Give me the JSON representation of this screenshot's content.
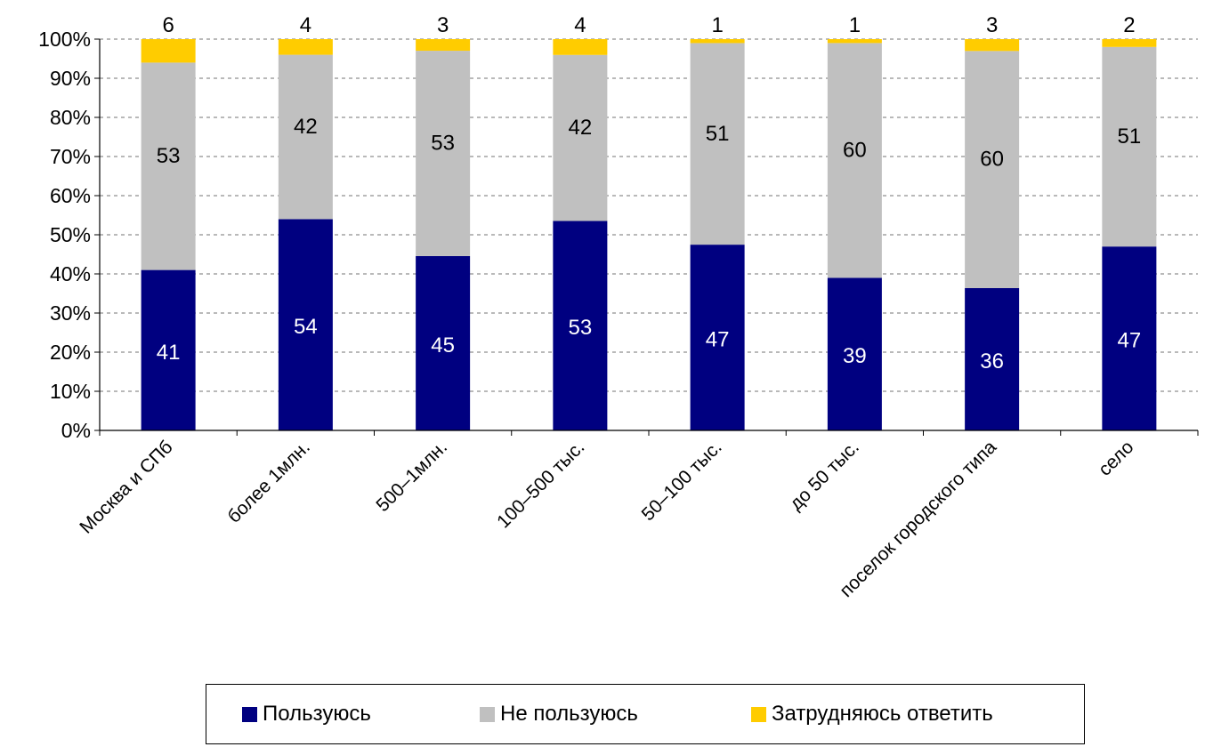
{
  "chart_data": {
    "type": "bar",
    "stacked": true,
    "percent_stacked": true,
    "categories": [
      "Москва и СПб",
      "более 1млн.",
      "500–1млн.",
      "100–500 тыс.",
      "50–100 тыс.",
      "до 50 тыс.",
      "поселок городского типа",
      "село"
    ],
    "series": [
      {
        "name": "Пользуюсь",
        "color": "#000080",
        "values": [
          41,
          54,
          45,
          53,
          47,
          39,
          36,
          47
        ]
      },
      {
        "name": "Не пользуюсь",
        "color": "#C0C0C0",
        "values": [
          53,
          42,
          53,
          42,
          51,
          60,
          60,
          51
        ]
      },
      {
        "name": "Затрудняюсь ответить",
        "color": "#FFCC00",
        "values": [
          6,
          4,
          3,
          4,
          1,
          1,
          3,
          2
        ]
      }
    ],
    "y_ticks": [
      "0%",
      "10%",
      "20%",
      "30%",
      "40%",
      "50%",
      "60%",
      "70%",
      "80%",
      "90%",
      "100%"
    ],
    "ylim": [
      0,
      100
    ],
    "grid": "horizontal-dashed",
    "legend_position": "bottom"
  }
}
